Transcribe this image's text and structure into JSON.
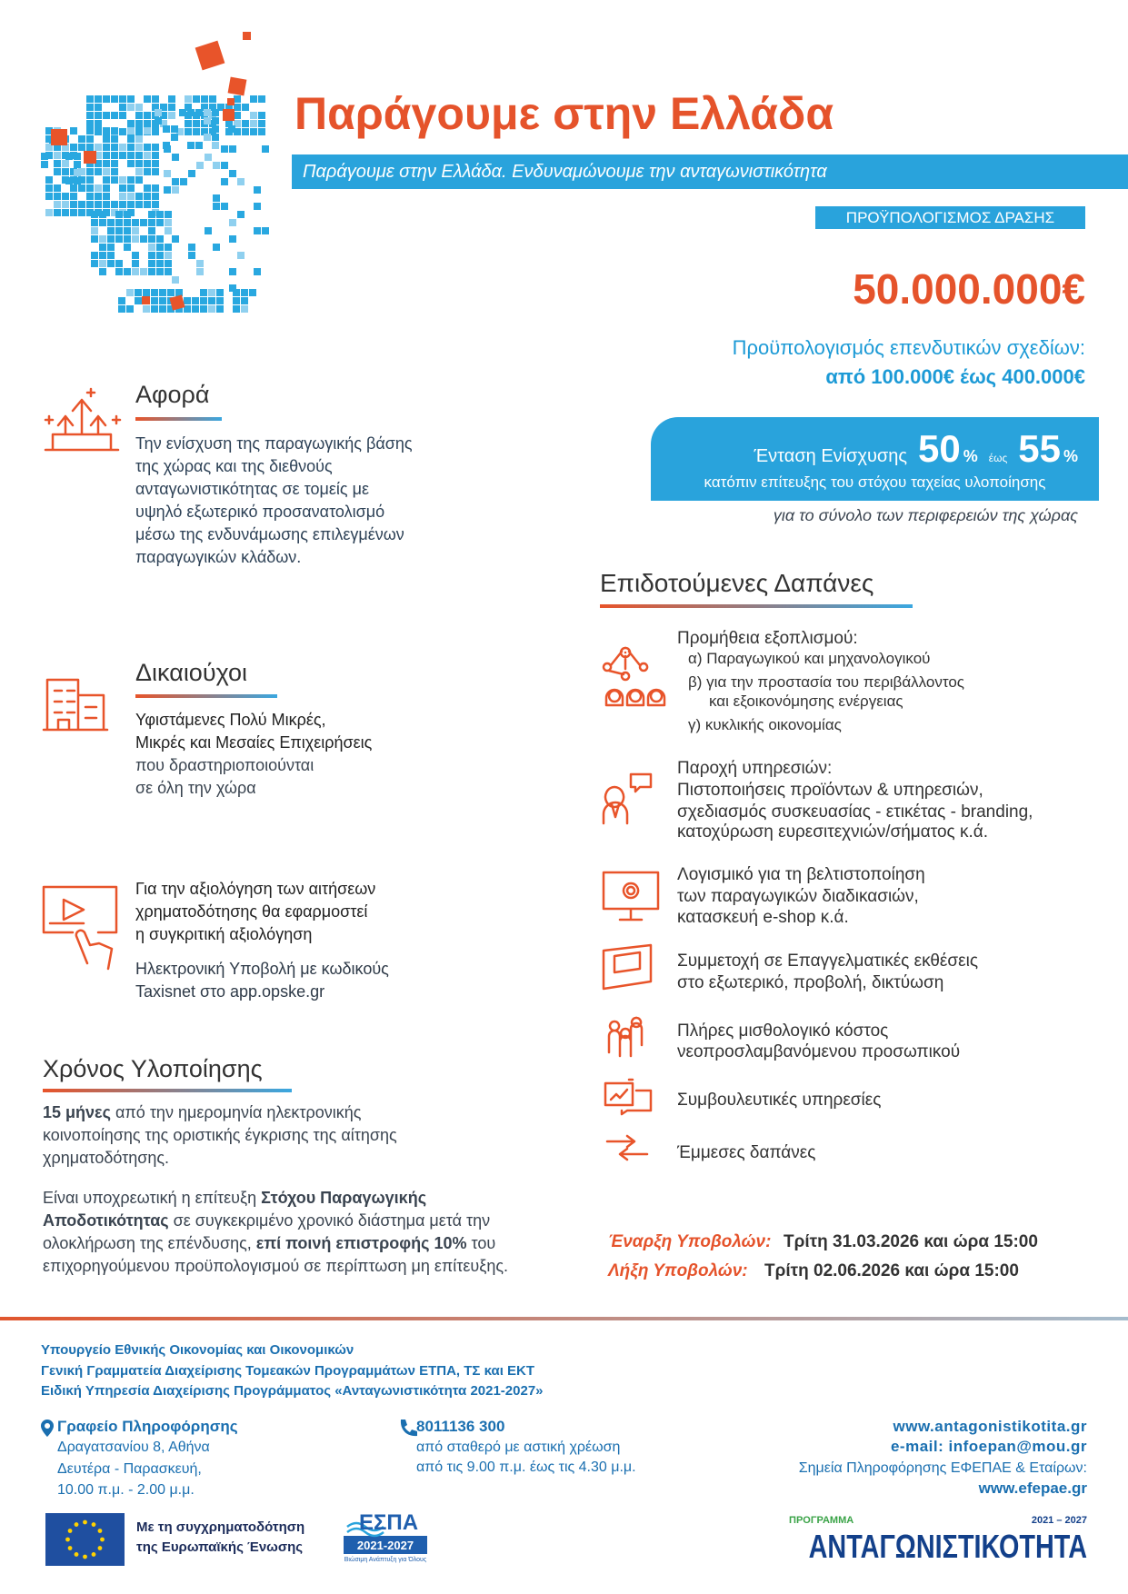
{
  "header": {
    "title": "Παράγουμε στην Ελλάδα",
    "subtitle": "Παράγουμε στην Ελλάδα. Ενδυναμώνουμε την ανταγωνιστικότητα"
  },
  "budget": {
    "label": "ΠΡΟΫΠΟΛΟΓΙΣΜΟΣ ΔΡΑΣΗΣ",
    "amount": "50.000.000€",
    "plans_label": "Προϋπολογισμός επενδυτικών σχεδίων:",
    "plans_range": "από 100.000€ έως 400.000€"
  },
  "intensity": {
    "label": "Ένταση Ενίσχυσης",
    "min": "50",
    "unit": "%",
    "between": "έως",
    "max": "55",
    "condition": "κατόπιν επίτευξης του στόχου ταχείας υλοποίησης",
    "scope": "για το σύνολο των περιφερειών της χώρας"
  },
  "about": {
    "heading": "Αφορά",
    "lines": [
      "Την ενίσχυση της παραγωγικής βάσης",
      "της χώρας και της διεθνούς",
      "ανταγωνιστικότητας σε τομείς με",
      "υψηλό εξωτερικό προσανατολισμό",
      "μέσω της ενδυνάμωσης επιλεγμένων",
      "παραγωγικών κλάδων."
    ]
  },
  "beneficiaries": {
    "heading": "Δικαιούχοι",
    "lines_emphasis": [
      "Υφιστάμενες Πολύ Μικρές,",
      "Μικρές και Μεσαίες Επιχειρήσεις"
    ],
    "lines": [
      "που δραστηριοποιούνται",
      "σε όλη την χώρα"
    ]
  },
  "evaluation": {
    "lines": [
      "Για την αξιολόγηση των αιτήσεων",
      "χρηματοδότησης θα εφαρμοστεί",
      "η συγκριτική αξιολόγηση"
    ],
    "submission_lines": [
      "Ηλεκτρονική Υποβολή με κωδικούς",
      "Taxisnet στο app.opske.gr"
    ]
  },
  "duration": {
    "heading": "Χρόνος Υλοποίησης",
    "paragraph1": [
      [
        {
          "text": "15 μήνες",
          "bold": true
        },
        {
          "text": "από την ημερομηνία ηλεκτρονικής"
        }
      ],
      [
        {
          "text": "κοινοποίησης της οριστικής έγκρισης της αίτησης"
        }
      ],
      [
        {
          "text": "χρηματοδότησης."
        }
      ]
    ],
    "paragraph2": [
      [
        {
          "text": "Είναι υποχρεωτική η επίτευξη"
        },
        {
          "text": "Στόχου Παραγωγικής",
          "bold": true
        }
      ],
      [
        {
          "text": "Αποδοτικότητας",
          "bold": true
        },
        {
          "text": "σε συγκεκριμένο χρονικό διάστημα μετά την"
        }
      ],
      [
        {
          "text": "ολοκλήρωση της επένδυσης,"
        },
        {
          "text": "επί ποινή επιστροφής 10%",
          "bold": true
        },
        {
          "text": "του"
        }
      ],
      [
        {
          "text": "επιχορηγούμενου προϋπολογισμού σε περίπτωση μη επίτευξης."
        }
      ]
    ]
  },
  "expenses": {
    "heading": "Επιδοτούμενες Δαπάνες",
    "items": [
      {
        "title": "Προμήθεια εξοπλισμού:",
        "lines": [
          "α) Παραγωγικού και μηχανολογικού",
          "β) για την προστασία του περιβάλλοντος",
          "και εξοικονόμησης ενέργειας",
          "γ) κυκλικής οικονομίας"
        ]
      },
      {
        "title": "Παροχή υπηρεσιών:",
        "lines": [
          "Πιστοποιήσεις προϊόντων & υπηρεσιών,",
          "σχεδιασμός συσκευασίας - ετικέτας - branding,",
          "κατοχύρωση ευρεσιτεχνιών/σήματος κ.ά."
        ]
      },
      {
        "lines": [
          "Λογισμικό για τη βελτιστοποίηση",
          "των παραγωγικών διαδικασιών,",
          "κατασκευή e-shop κ.ά."
        ]
      },
      {
        "lines": [
          "Συμμετοχή σε Επαγγελματικές εκθέσεις",
          "στο εξωτερικό, προβολή, δικτύωση"
        ]
      },
      {
        "lines": [
          "Πλήρες μισθολογικό κόστος",
          "νεοπροσλαμβανόμενου προσωπικού"
        ]
      },
      {
        "lines": [
          "Συμβουλευτικές υπηρεσίες"
        ]
      },
      {
        "lines": [
          "Έμμεσες δαπάνες"
        ]
      }
    ]
  },
  "dates": {
    "start_label": "Έναρξη Υποβολών:",
    "start": "Τρίτη 31.03.2026 και ώρα 15:00",
    "end_label": "Λήξη Υποβολών:",
    "end": "Τρίτη 02.06.2026 και ώρα 15:00"
  },
  "footer": {
    "ministry": [
      "Υπουργείο Εθνικής Οικονομίας και Οικονομικών",
      "Γενική Γραμματεία Διαχείρισης Τομεακών Προγραμμάτων ΕΤΠΑ, ΤΣ και ΕΚΤ",
      "Ειδική Υπηρεσία Διαχείρισης Προγράμματος «Ανταγωνιστικότητα 2021-2027»"
    ],
    "office": {
      "title": "Γραφείο Πληροφόρησης",
      "lines": [
        "Δραγατσανίου 8, Αθήνα",
        "Δευτέρα - Παρασκευή,",
        "10.00 π.μ. - 2.00 μ.μ."
      ]
    },
    "phone": {
      "number": "8011136 300",
      "lines": [
        "από σταθερό με αστική χρέωση",
        "από τις 9.00 π.μ. έως τις 4.30 μ.μ."
      ]
    },
    "web": {
      "site": "www.antagonistikotita.gr",
      "email": "e-mail: infoepan@mou.gr",
      "points": "Σημεία Πληροφόρησης ΕΦΕΠΑΕ & Εταίρων:",
      "efepae": "www.efepae.gr"
    }
  },
  "logos": {
    "eu_lines": [
      "Με τη συγχρηματοδότηση",
      "της Ευρωπαϊκής Ένωσης"
    ],
    "espa": "ΕΣΠΑ",
    "espa_years": "2021-2027",
    "espa_tag": "Βιώσιμη Ανάπτυξη για Όλους",
    "programme_label": "ΠΡΟΓΡΑΜΜΑ",
    "programme_years": "2021 – 2027",
    "programme": "ΑΝΤΑΓΩΝΙΣΤΙΚΟΤΗΤΑ"
  }
}
